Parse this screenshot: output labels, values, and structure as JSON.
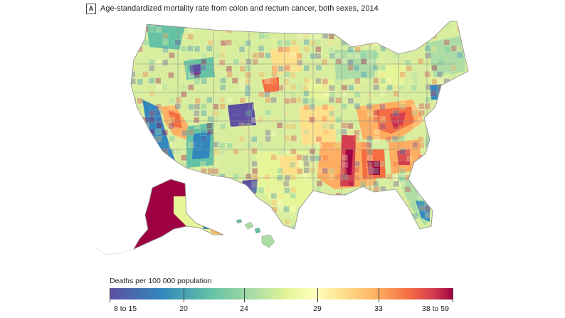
{
  "panel": {
    "letter": "A",
    "title": "Age-standardized mortality rate from colon and rectum cancer, both sexes, 2014"
  },
  "legend": {
    "title": "Deaths per 100 000 population",
    "ticks": [
      "8 to 15",
      "20",
      "24",
      "29",
      "33",
      "38 to 59"
    ],
    "color_stops": [
      "#5e4fa2",
      "#3288bd",
      "#66c2a5",
      "#abdda4",
      "#e6f598",
      "#ffffbf",
      "#fee08b",
      "#fdae61",
      "#f46d43",
      "#d53e4f",
      "#9e0142"
    ]
  },
  "map": {
    "type": "county choropleth",
    "regions": [
      "Contiguous United States",
      "Alaska",
      "Hawaii"
    ],
    "colors": {
      "low": "#5e4fa2",
      "mid": "#ffffbf",
      "high": "#9e0142",
      "border": "#9a9a9a"
    }
  }
}
